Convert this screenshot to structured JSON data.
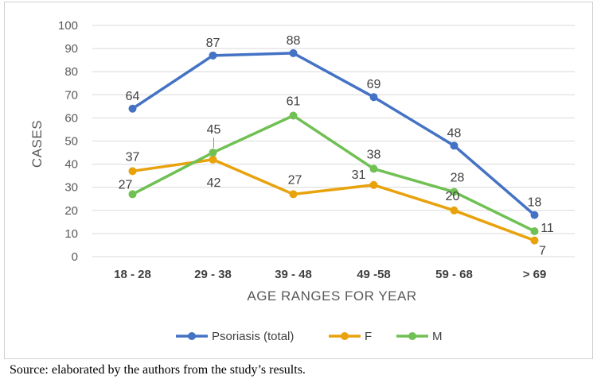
{
  "chart_data": {
    "type": "line",
    "categories": [
      "18 - 28",
      "29 - 38",
      "39 - 48",
      "49 -58",
      "59 - 68",
      "> 69"
    ],
    "series": [
      {
        "name": "Psoriasis (total)",
        "color": "#4472C4",
        "values": [
          64,
          87,
          88,
          69,
          48,
          18
        ]
      },
      {
        "name": "F",
        "color": "#E8A20C",
        "values": [
          37,
          42,
          27,
          31,
          20,
          7
        ]
      },
      {
        "name": "M",
        "color": "#70C054",
        "values": [
          27,
          45,
          61,
          38,
          28,
          11
        ]
      }
    ],
    "xlabel": "AGE RANGES FOR YEAR",
    "ylabel": "CASES",
    "ylim": [
      0,
      100
    ],
    "yticks": [
      0,
      10,
      20,
      30,
      40,
      50,
      60,
      70,
      80,
      90,
      100
    ],
    "grid": true,
    "legend": "bottom",
    "gridColor": "#d9d9d9"
  },
  "source": "Source: elaborated by the authors from the study’s results."
}
